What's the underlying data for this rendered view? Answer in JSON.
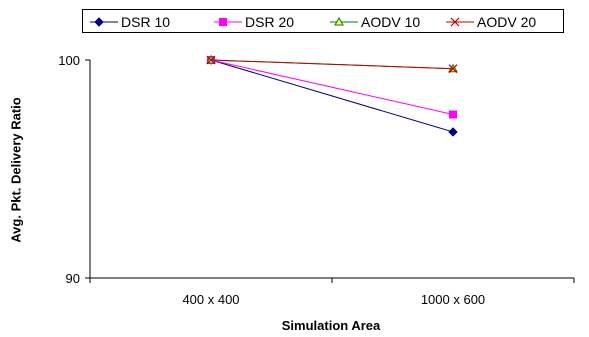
{
  "chart_data": {
    "type": "line",
    "categories": [
      "400 x 400",
      "1000 x 600"
    ],
    "xlabel": "Simulation Area",
    "ylabel": "Avg. Pkt. Delivery Ratio",
    "ylim": [
      90,
      100
    ],
    "yticks": [
      90,
      100
    ],
    "grid": false,
    "legend_position": "top",
    "series": [
      {
        "name": "DSR 10",
        "values": [
          100,
          96.7
        ],
        "color": "#000080",
        "marker": "diamond"
      },
      {
        "name": "DSR 20",
        "values": [
          100,
          97.5
        ],
        "color": "#ff00ff",
        "marker": "square"
      },
      {
        "name": "AODV 10",
        "values": [
          100,
          99.6
        ],
        "color": "#008000",
        "marker": "triangle"
      },
      {
        "name": "AODV 20",
        "values": [
          100,
          99.6
        ],
        "color": "#c00000",
        "marker": "x"
      }
    ]
  }
}
